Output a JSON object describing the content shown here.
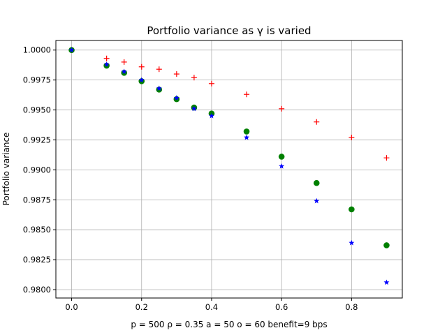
{
  "chart_data": {
    "type": "scatter",
    "title": "Portfolio variance as γ is varied",
    "xlabel": "p = 500  ρ = 0.35  a = 50  o = 60   benefit=9 bps",
    "ylabel": "Portfolio variance",
    "xlim": [
      -0.045,
      0.945
    ],
    "ylim": [
      0.9793,
      1.0008
    ],
    "xticks": [
      0.0,
      0.2,
      0.4,
      0.6,
      0.8
    ],
    "xtick_labels": [
      "0.0",
      "0.2",
      "0.4",
      "0.6",
      "0.8"
    ],
    "yticks": [
      0.98,
      0.9825,
      0.985,
      0.9875,
      0.99,
      0.9925,
      0.995,
      0.9975,
      1.0
    ],
    "ytick_labels": [
      "0.9800",
      "0.9825",
      "0.9850",
      "0.9875",
      "0.9900",
      "0.9925",
      "0.9950",
      "0.9975",
      "1.0000"
    ],
    "grid": true,
    "series": [
      {
        "name": "red-plus",
        "marker": "plus",
        "color": "#ff0000",
        "x": [
          0.0,
          0.1,
          0.15,
          0.2,
          0.25,
          0.3,
          0.35,
          0.4,
          0.5,
          0.6,
          0.7,
          0.8,
          0.9
        ],
        "y": [
          1.0,
          0.9993,
          0.999,
          0.9986,
          0.9984,
          0.998,
          0.9977,
          0.9972,
          0.9963,
          0.9951,
          0.994,
          0.9927,
          0.991
        ]
      },
      {
        "name": "green-circle",
        "marker": "circle",
        "color": "#008000",
        "x": [
          0.0,
          0.1,
          0.15,
          0.2,
          0.25,
          0.3,
          0.35,
          0.4,
          0.5,
          0.6,
          0.7,
          0.8,
          0.9
        ],
        "y": [
          1.0,
          0.9987,
          0.9981,
          0.9974,
          0.9967,
          0.9959,
          0.9952,
          0.9947,
          0.9932,
          0.9911,
          0.9889,
          0.9867,
          0.9837
        ]
      },
      {
        "name": "blue-star",
        "marker": "star",
        "color": "#0000ff",
        "x": [
          0.0,
          0.1,
          0.15,
          0.2,
          0.25,
          0.3,
          0.35,
          0.4,
          0.5,
          0.6,
          0.7,
          0.8,
          0.9
        ],
        "y": [
          1.0,
          0.9988,
          0.9982,
          0.9975,
          0.9968,
          0.996,
          0.9951,
          0.9945,
          0.9927,
          0.9903,
          0.9874,
          0.9839,
          0.9806
        ]
      }
    ]
  }
}
